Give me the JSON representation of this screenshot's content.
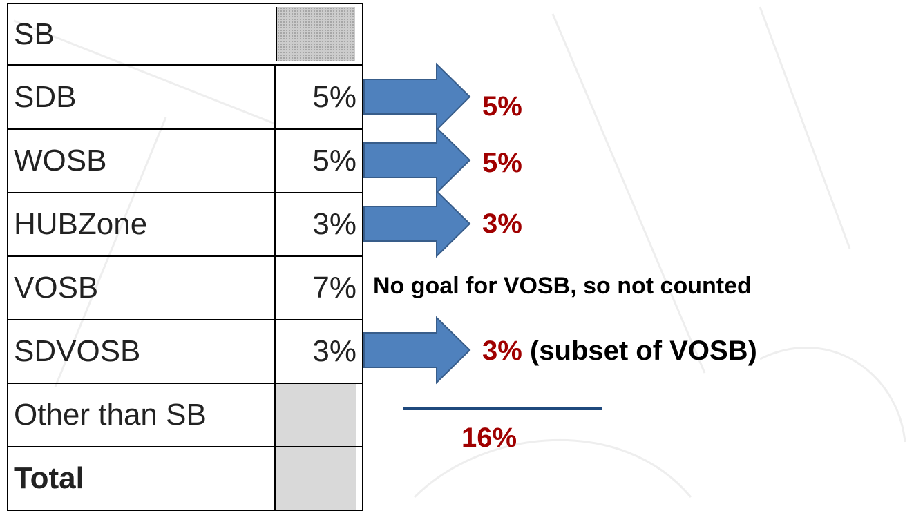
{
  "table": {
    "rows": [
      {
        "label": "SB"
      },
      {
        "label": "SDB",
        "value": "5%"
      },
      {
        "label": "WOSB",
        "value": "5%"
      },
      {
        "label": "HUBZone",
        "value": "3%"
      },
      {
        "label": "VOSB",
        "value": "7%"
      },
      {
        "label": "SDVOSB",
        "value": "3%"
      },
      {
        "label": "Other than SB"
      },
      {
        "label": "Total"
      }
    ]
  },
  "callouts": [
    {
      "text": "5%"
    },
    {
      "text": "5%"
    },
    {
      "text": "3%"
    },
    {
      "text": "3%",
      "note": "(subset of VOSB)"
    }
  ],
  "vosb_note": "No goal for VOSB, so not counted",
  "total": "16%"
}
